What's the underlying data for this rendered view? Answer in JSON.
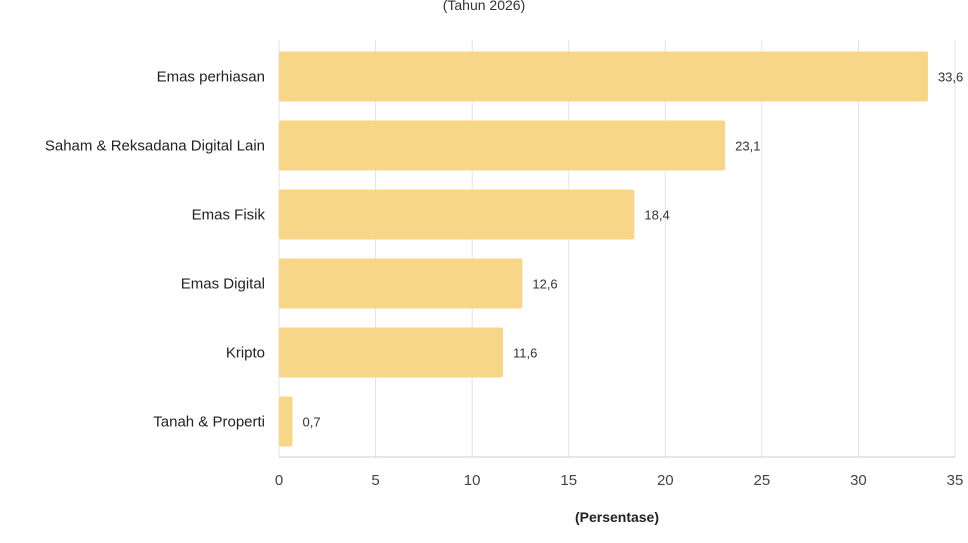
{
  "chart_data": {
    "type": "bar",
    "orientation": "horizontal",
    "subtitle": "(Tahun 2026)",
    "xlabel": "(Persentase)",
    "ylabel": "",
    "categories": [
      "Emas perhiasan",
      "Saham & Reksadana Digital Lain",
      "Emas Fisik",
      "Emas Digital",
      "Kripto",
      "Tanah & Properti"
    ],
    "values": [
      33.6,
      23.1,
      18.4,
      12.6,
      11.6,
      0.7
    ],
    "value_labels": [
      "33,6",
      "23,1",
      "18,4",
      "12,6",
      "11,6",
      "0,7"
    ],
    "xlim": [
      0,
      35
    ],
    "xticks": [
      0,
      5,
      10,
      15,
      20,
      25,
      30,
      35
    ],
    "xtick_labels": [
      "0",
      "5",
      "10",
      "15",
      "20",
      "25",
      "30",
      "35"
    ],
    "grid": true,
    "bar_color": "#f8d688"
  }
}
